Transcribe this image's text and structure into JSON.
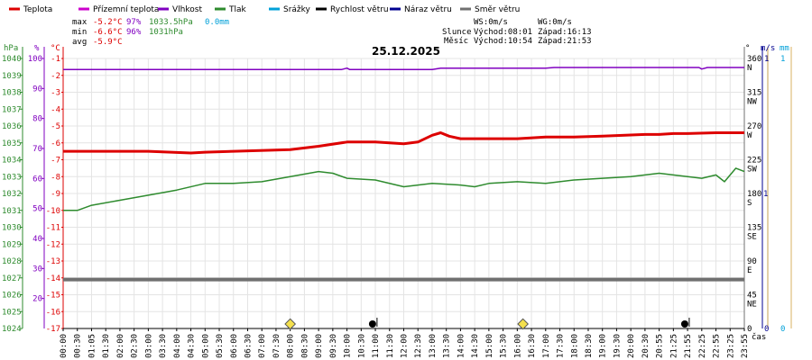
{
  "chart_data": {
    "type": "line",
    "title": "25.12.2025",
    "legend": [
      {
        "name": "Teplota",
        "color": "#dd0000"
      },
      {
        "name": "Přízemní teplota",
        "color": "#cc00cc"
      },
      {
        "name": "Vlhkost",
        "color": "#8000c0"
      },
      {
        "name": "Tlak",
        "color": "#2e8b2e"
      },
      {
        "name": "Srážky",
        "color": "#00a0d8"
      },
      {
        "name": "Rychlost větru",
        "color": "#000000"
      },
      {
        "name": "Náraz větru",
        "color": "#000090"
      },
      {
        "name": "Směr větru",
        "color": "#707070"
      }
    ],
    "stats": {
      "max": {
        "label": "max",
        "temp": "-5.2°C",
        "hum": "97%",
        "press": "1033.5hPa",
        "rain": "0.0mm"
      },
      "min": {
        "label": "min",
        "temp": "-6.6°C",
        "hum": "96%",
        "press": "1031hPa"
      },
      "avg": {
        "label": "avg",
        "temp": "-5.9°C"
      }
    },
    "info": {
      "ws": "WS:0m/s",
      "wg": "WG:0m/s",
      "sun_label": "Slunce",
      "sun_rise": "Východ:08:01",
      "sun_set": "Západ:16:13",
      "moon_label": "Měsíc",
      "moon_rise": "Východ:10:54",
      "moon_set": "Západ:21:53"
    },
    "axes": {
      "hpa": {
        "unit": "hPa",
        "min": 1024,
        "max": 1040,
        "ticks": [
          1024,
          1025,
          1026,
          1027,
          1028,
          1029,
          1030,
          1031,
          1032,
          1033,
          1034,
          1035,
          1036,
          1037,
          1038,
          1039,
          1040
        ]
      },
      "pct": {
        "unit": "%",
        "ticks": [
          20,
          30,
          40,
          50,
          60,
          70,
          80,
          90,
          100
        ]
      },
      "temp": {
        "unit": "°C",
        "min": -17,
        "max": -1,
        "ticks": [
          -1,
          -2,
          -3,
          -4,
          -5,
          -6,
          -7,
          -8,
          -9,
          -10,
          -11,
          -12,
          -13,
          -14,
          -15,
          -16,
          -17
        ]
      },
      "dir": {
        "unit": "°",
        "ticks": [
          {
            "v": "360",
            "c": "N"
          },
          {
            "v": "315",
            "c": "NW"
          },
          {
            "v": "270",
            "c": "W"
          },
          {
            "v": "225",
            "c": "SW"
          },
          {
            "v": "180",
            "c": "S"
          },
          {
            "v": "135",
            "c": "SE"
          },
          {
            "v": "90",
            "c": "E"
          },
          {
            "v": "45",
            "c": "NE"
          },
          {
            "v": "0",
            "c": ""
          }
        ]
      },
      "ms": {
        "unit": "m/s",
        "top": "1",
        "mid": "1",
        "bottom": "0"
      },
      "mm": {
        "unit": "mm",
        "top": "1",
        "bottom": "0"
      },
      "x": {
        "label": "čas",
        "ticks": [
          "00:00",
          "00:30",
          "01:05",
          "01:30",
          "02:00",
          "02:30",
          "03:00",
          "03:30",
          "04:00",
          "04:30",
          "05:00",
          "05:30",
          "06:00",
          "06:30",
          "07:00",
          "07:30",
          "08:00",
          "08:30",
          "09:00",
          "09:30",
          "10:00",
          "10:30",
          "11:00",
          "11:30",
          "12:00",
          "12:30",
          "13:00",
          "13:30",
          "14:00",
          "14:30",
          "15:00",
          "15:30",
          "16:00",
          "16:30",
          "17:00",
          "17:30",
          "18:00",
          "18:30",
          "19:00",
          "19:30",
          "20:00",
          "20:30",
          "20:55",
          "21:25",
          "21:55",
          "22:25",
          "22:55",
          "23:25",
          "23:55"
        ]
      }
    },
    "series": [
      {
        "name": "Teplota",
        "axis": "temp",
        "color": "#dd0000",
        "x": [
          0,
          2,
          3,
          4.5,
          5,
          6,
          8,
          9,
          10,
          11,
          11.5,
          12,
          12.5,
          13,
          13.3,
          13.6,
          14,
          15,
          16,
          17,
          18,
          19,
          19.8,
          20.5,
          21,
          21.5,
          22,
          23,
          23.5,
          24
        ],
        "y": [
          -6.5,
          -6.5,
          -6.5,
          -6.6,
          -6.55,
          -6.5,
          -6.4,
          -6.2,
          -5.95,
          -5.95,
          -6.0,
          -6.05,
          -5.95,
          -5.55,
          -5.4,
          -5.6,
          -5.75,
          -5.75,
          -5.75,
          -5.65,
          -5.65,
          -5.6,
          -5.55,
          -5.5,
          -5.5,
          -5.45,
          -5.45,
          -5.4,
          -5.4,
          -5.4
        ]
      },
      {
        "name": "Vlhkost",
        "axis": "pct",
        "color": "#8000c0",
        "x": [
          0,
          9.8,
          10,
          10.1,
          13,
          13.3,
          17,
          17.3,
          22.4,
          22.5,
          22.7,
          24
        ],
        "y": [
          96.3,
          96.3,
          96.8,
          96.3,
          96.3,
          96.8,
          96.8,
          97.0,
          97.0,
          96.5,
          97.0,
          97.0
        ]
      },
      {
        "name": "Tlak",
        "axis": "hpa",
        "color": "#2e8b2e",
        "x": [
          0,
          0.5,
          1,
          2,
          3,
          4,
          5,
          6,
          7,
          8,
          9,
          9.5,
          10,
          11,
          12,
          13,
          14,
          14.5,
          15,
          16,
          17,
          18,
          19,
          20,
          21,
          22,
          22.5,
          23,
          23.3,
          23.7,
          24
        ],
        "y": [
          1031.0,
          1031.0,
          1031.3,
          1031.6,
          1031.9,
          1032.2,
          1032.6,
          1032.6,
          1032.7,
          1033.0,
          1033.3,
          1033.2,
          1032.9,
          1032.8,
          1032.4,
          1032.6,
          1032.5,
          1032.4,
          1032.6,
          1032.7,
          1032.6,
          1032.8,
          1032.9,
          1033.0,
          1033.2,
          1033.0,
          1032.9,
          1033.1,
          1032.7,
          1033.5,
          1033.3
        ]
      },
      {
        "name": "Směr větru",
        "axis": "temp",
        "color": "#707070",
        "x": [
          0,
          24
        ],
        "y": [
          -14.1,
          -14.1
        ]
      }
    ],
    "markers": [
      {
        "type": "sun",
        "x": 8.0,
        "color": "#f4e04d"
      },
      {
        "type": "moon",
        "x": 16.2,
        "color": "#f4e04d"
      },
      {
        "type": "dot",
        "x": 10.9,
        "color": "#000000"
      },
      {
        "type": "dot",
        "x": 21.9,
        "color": "#000000"
      }
    ]
  }
}
